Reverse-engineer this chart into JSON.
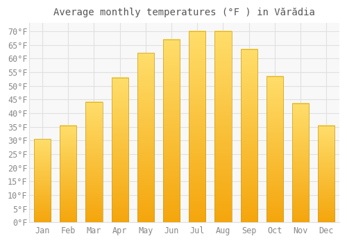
{
  "title": "Average monthly temperatures (°F ) in Vărădia",
  "months": [
    "Jan",
    "Feb",
    "Mar",
    "Apr",
    "May",
    "Jun",
    "Jul",
    "Aug",
    "Sep",
    "Oct",
    "Nov",
    "Dec"
  ],
  "values": [
    30.5,
    35.5,
    44,
    53,
    62,
    67,
    70,
    70,
    63.5,
    53.5,
    43.5,
    35.5
  ],
  "bar_color_bottom": "#F5A800",
  "bar_color_top": "#FFD966",
  "bar_border_color": "#C8A020",
  "background_color": "#FFFFFF",
  "plot_bg_color": "#F8F8F8",
  "ylim": [
    0,
    73
  ],
  "yticks": [
    0,
    5,
    10,
    15,
    20,
    25,
    30,
    35,
    40,
    45,
    50,
    55,
    60,
    65,
    70
  ],
  "ytick_labels": [
    "0°F",
    "5°F",
    "10°F",
    "15°F",
    "20°F",
    "25°F",
    "30°F",
    "35°F",
    "40°F",
    "45°F",
    "50°F",
    "55°F",
    "60°F",
    "65°F",
    "70°F"
  ],
  "grid_color": "#E0E0E0",
  "text_color": "#888888",
  "title_color": "#555555",
  "title_fontsize": 10,
  "axis_fontsize": 8.5,
  "bar_width": 0.65
}
